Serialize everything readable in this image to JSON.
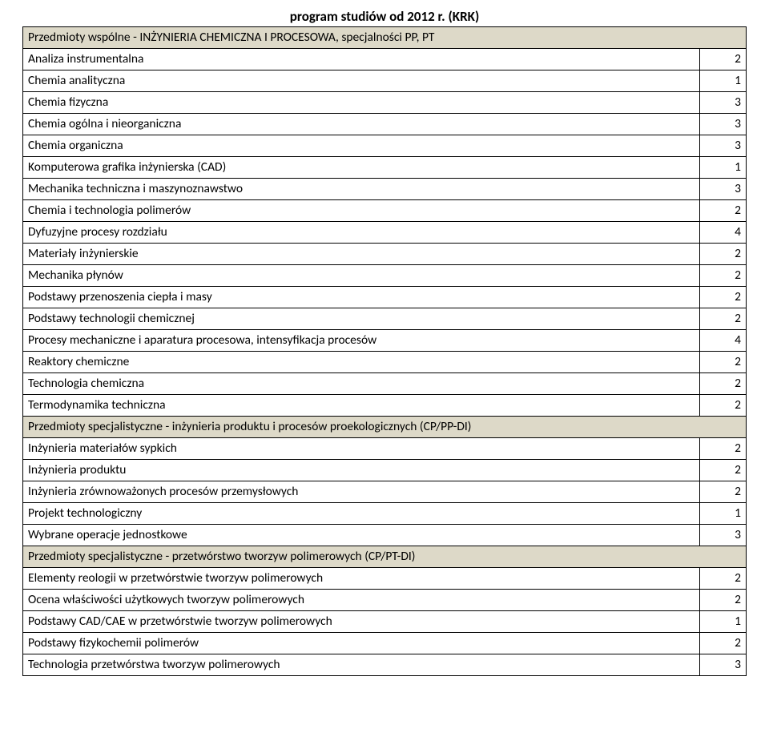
{
  "title": "program studiów od 2012 r. (KRK)",
  "sections": [
    {
      "header": "Przedmioty wspólne - INŻYNIERIA CHEMICZNA I PROCESOWA, specjalności PP, PT",
      "rows": [
        {
          "name": "Analiza instrumentalna",
          "val": "2"
        },
        {
          "name": "Chemia analityczna",
          "val": "1"
        },
        {
          "name": "Chemia fizyczna",
          "val": "3"
        },
        {
          "name": "Chemia ogólna i nieorganiczna",
          "val": "3"
        },
        {
          "name": "Chemia organiczna",
          "val": "3"
        },
        {
          "name": "Komputerowa grafika inżynierska (CAD)",
          "val": "1"
        },
        {
          "name": "Mechanika techniczna i maszynoznawstwo",
          "val": "3"
        },
        {
          "name": "Chemia i technologia polimerów",
          "val": "2"
        },
        {
          "name": "Dyfuzyjne procesy rozdziału",
          "val": "4"
        },
        {
          "name": "Materiały inżynierskie",
          "val": "2"
        },
        {
          "name": "Mechanika płynów",
          "val": "2"
        },
        {
          "name": "Podstawy przenoszenia ciepła i masy",
          "val": "2"
        },
        {
          "name": "Podstawy technologii chemicznej",
          "val": "2"
        },
        {
          "name": "Procesy mechaniczne i aparatura procesowa, intensyfikacja procesów",
          "val": "4"
        },
        {
          "name": "Reaktory chemiczne",
          "val": "2"
        },
        {
          "name": "Technologia chemiczna",
          "val": "2"
        },
        {
          "name": "Termodynamika techniczna",
          "val": "2"
        }
      ]
    },
    {
      "header": "Przedmioty specjalistyczne - inżynieria produktu i procesów proekologicznych (CP/PP-DI)",
      "rows": [
        {
          "name": "Inżynieria materiałów sypkich",
          "val": "2"
        },
        {
          "name": "Inżynieria produktu",
          "val": "2"
        },
        {
          "name": "Inżynieria zrównoważonych procesów przemysłowych",
          "val": "2"
        },
        {
          "name": "Projekt technologiczny",
          "val": "1"
        },
        {
          "name": "Wybrane operacje jednostkowe",
          "val": "3"
        }
      ]
    },
    {
      "header": "Przedmioty specjalistyczne - przetwórstwo tworzyw polimerowych (CP/PT-DI)",
      "rows": [
        {
          "name": "Elementy reologii w przetwórstwie tworzyw polimerowych",
          "val": "2"
        },
        {
          "name": "Ocena właściwości użytkowych tworzyw polimerowych",
          "val": "2"
        },
        {
          "name": "Podstawy CAD/CAE w przetwórstwie tworzyw polimerowych",
          "val": "1"
        },
        {
          "name": "Podstawy fizykochemii polimerów",
          "val": "2"
        },
        {
          "name": "Technologia przetwórstwa tworzyw polimerowych",
          "val": "3"
        }
      ]
    }
  ],
  "colors": {
    "section_bg": "#ddd9c8",
    "border": "#000000",
    "text": "#000000",
    "page_bg": "#ffffff"
  }
}
